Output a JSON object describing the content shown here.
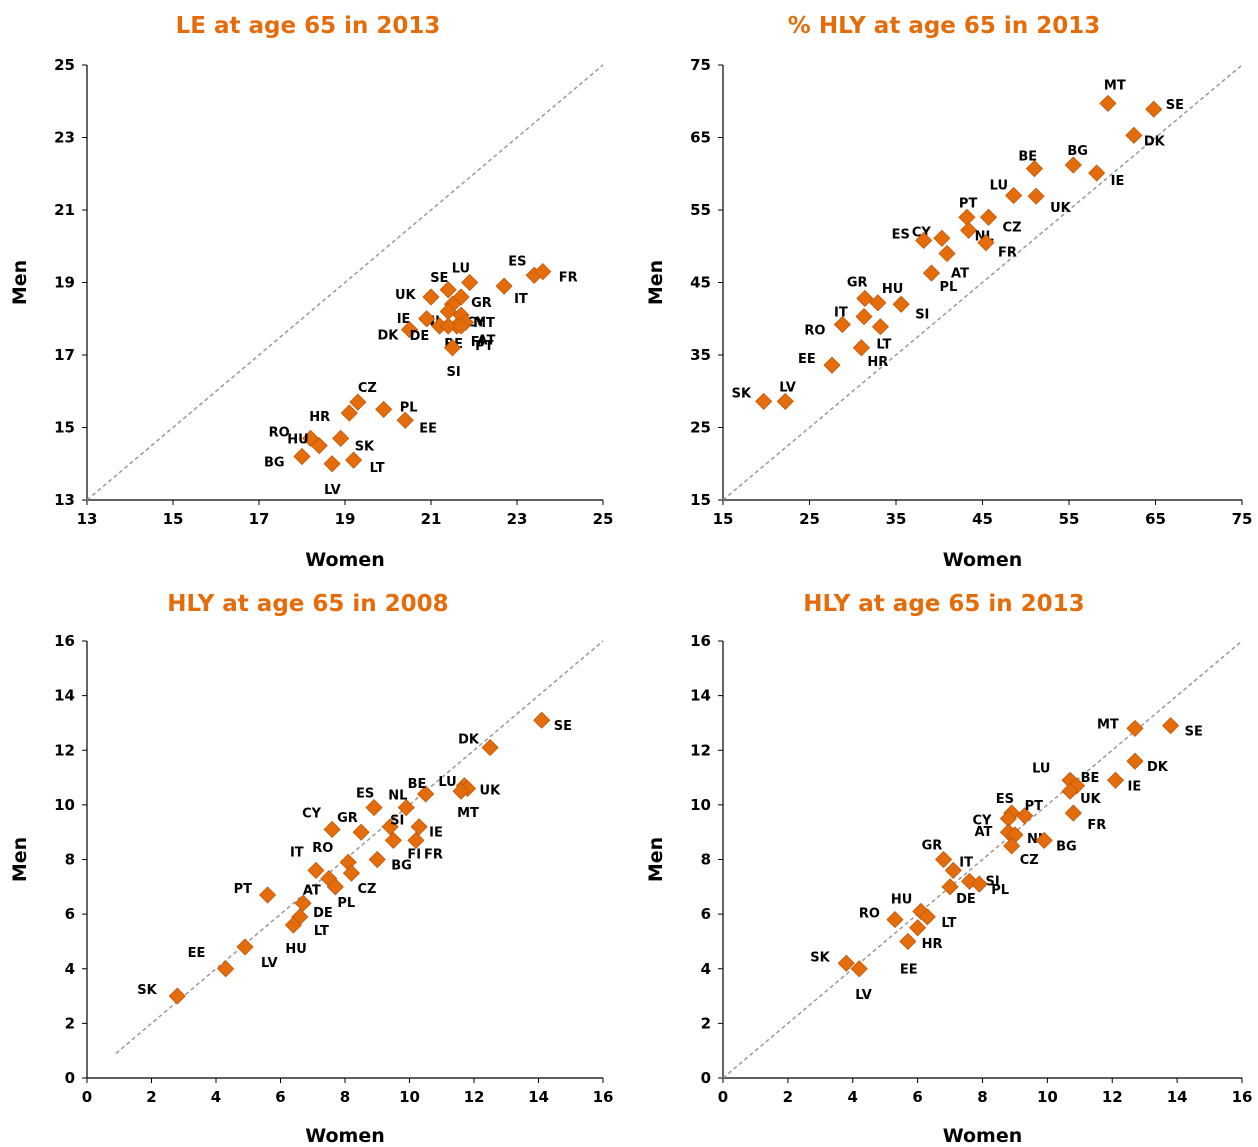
{
  "chart_data": [
    {
      "type": "scatter",
      "title": "LE at age 65 in 2013",
      "xlabel": "Women",
      "ylabel": "Men",
      "xlim": [
        13,
        25
      ],
      "ylim": [
        13,
        25
      ],
      "xticks": [
        "13",
        "15",
        "17",
        "19",
        "21",
        "23",
        "25"
      ],
      "yticks": [
        "13",
        "15",
        "17",
        "19",
        "21",
        "23",
        "25"
      ],
      "reference_line": "y = x",
      "marker_color": "#E46C0A",
      "points": [
        {
          "label": "ES",
          "x": 23.4,
          "y": 19.2
        },
        {
          "label": "FR",
          "x": 23.6,
          "y": 19.3
        },
        {
          "label": "IT",
          "x": 22.7,
          "y": 18.9
        },
        {
          "label": "LU",
          "x": 21.9,
          "y": 19.0
        },
        {
          "label": "SE",
          "x": 21.4,
          "y": 18.8
        },
        {
          "label": "GR",
          "x": 21.7,
          "y": 18.6
        },
        {
          "label": "CY",
          "x": 21.5,
          "y": 18.4
        },
        {
          "label": "UK",
          "x": 21.0,
          "y": 18.6
        },
        {
          "label": "NL",
          "x": 21.4,
          "y": 18.2
        },
        {
          "label": "MT",
          "x": 21.7,
          "y": 18.1
        },
        {
          "label": "AT",
          "x": 21.8,
          "y": 17.9
        },
        {
          "label": "IE",
          "x": 20.9,
          "y": 18.0
        },
        {
          "label": "FI",
          "x": 21.6,
          "y": 17.8
        },
        {
          "label": "DK",
          "x": 20.5,
          "y": 17.7
        },
        {
          "label": "DE",
          "x": 21.2,
          "y": 17.8
        },
        {
          "label": "BE",
          "x": 21.4,
          "y": 17.8
        },
        {
          "label": "PT",
          "x": 21.7,
          "y": 17.8
        },
        {
          "label": "SI",
          "x": 21.5,
          "y": 17.2
        },
        {
          "label": "CZ",
          "x": 19.3,
          "y": 15.7
        },
        {
          "label": "HR",
          "x": 19.1,
          "y": 15.4
        },
        {
          "label": "PL",
          "x": 19.9,
          "y": 15.5
        },
        {
          "label": "EE",
          "x": 20.4,
          "y": 15.2
        },
        {
          "label": "RO",
          "x": 18.2,
          "y": 14.7
        },
        {
          "label": "HU",
          "x": 18.4,
          "y": 14.5
        },
        {
          "label": "SK",
          "x": 18.9,
          "y": 14.7
        },
        {
          "label": "BG",
          "x": 18.0,
          "y": 14.2
        },
        {
          "label": "LT",
          "x": 19.2,
          "y": 14.1
        },
        {
          "label": "LV",
          "x": 18.7,
          "y": 14.0
        }
      ]
    },
    {
      "type": "scatter",
      "title": "% HLY at age 65 in 2013",
      "xlabel": "Women",
      "ylabel": "Men",
      "xlim": [
        15,
        75
      ],
      "ylim": [
        15,
        75
      ],
      "xticks": [
        "15",
        "25",
        "35",
        "45",
        "55",
        "65",
        "75"
      ],
      "yticks": [
        "15",
        "25",
        "35",
        "45",
        "55",
        "65",
        "75"
      ],
      "reference_line": "y = x",
      "marker_color": "#E46C0A",
      "points": [
        {
          "label": "MT",
          "x": 59.5,
          "y": 69.7
        },
        {
          "label": "SE",
          "x": 64.8,
          "y": 68.9
        },
        {
          "label": "DK",
          "x": 62.5,
          "y": 65.3
        },
        {
          "label": "BE",
          "x": 51.0,
          "y": 60.7
        },
        {
          "label": "BG",
          "x": 55.5,
          "y": 61.2
        },
        {
          "label": "IE",
          "x": 58.2,
          "y": 60.1
        },
        {
          "label": "LU",
          "x": 48.6,
          "y": 57.0
        },
        {
          "label": "UK",
          "x": 51.2,
          "y": 56.9
        },
        {
          "label": "PT",
          "x": 43.2,
          "y": 54.0
        },
        {
          "label": "CZ",
          "x": 45.7,
          "y": 54.0
        },
        {
          "label": "CY",
          "x": 40.3,
          "y": 51.1
        },
        {
          "label": "NL",
          "x": 43.4,
          "y": 52.2
        },
        {
          "label": "ES",
          "x": 38.2,
          "y": 50.8
        },
        {
          "label": "FR",
          "x": 45.4,
          "y": 50.5
        },
        {
          "label": "AT",
          "x": 40.9,
          "y": 49.0
        },
        {
          "label": "PL",
          "x": 39.1,
          "y": 46.3
        },
        {
          "label": "GR",
          "x": 31.4,
          "y": 42.8
        },
        {
          "label": "HU",
          "x": 32.9,
          "y": 42.2
        },
        {
          "label": "SI",
          "x": 35.6,
          "y": 42.0
        },
        {
          "label": "IT",
          "x": 31.3,
          "y": 40.3
        },
        {
          "label": "RO",
          "x": 28.8,
          "y": 39.2
        },
        {
          "label": "LT",
          "x": 33.2,
          "y": 38.9
        },
        {
          "label": "HR",
          "x": 31.0,
          "y": 36.0
        },
        {
          "label": "EE",
          "x": 27.6,
          "y": 33.6
        },
        {
          "label": "SK",
          "x": 19.7,
          "y": 28.6
        },
        {
          "label": "LV",
          "x": 22.2,
          "y": 28.6
        }
      ]
    },
    {
      "type": "scatter",
      "title": "HLY at age 65 in 2008",
      "xlabel": "Women",
      "ylabel": "Men",
      "xlim": [
        0,
        16
      ],
      "ylim": [
        0,
        16
      ],
      "xticks": [
        "0",
        "2",
        "4",
        "6",
        "8",
        "10",
        "12",
        "14",
        "16"
      ],
      "yticks": [
        "0",
        "2",
        "4",
        "6",
        "8",
        "10",
        "12",
        "14",
        "16"
      ],
      "reference_line": "y = x",
      "marker_color": "#E46C0A",
      "points": [
        {
          "label": "SE",
          "x": 14.1,
          "y": 13.1
        },
        {
          "label": "DK",
          "x": 12.5,
          "y": 12.1
        },
        {
          "label": "LU",
          "x": 11.7,
          "y": 10.7
        },
        {
          "label": "UK",
          "x": 11.8,
          "y": 10.6
        },
        {
          "label": "MT",
          "x": 11.6,
          "y": 10.5
        },
        {
          "label": "BE",
          "x": 10.5,
          "y": 10.4
        },
        {
          "label": "ES",
          "x": 8.9,
          "y": 9.9
        },
        {
          "label": "NL",
          "x": 9.9,
          "y": 9.9
        },
        {
          "label": "CY",
          "x": 7.6,
          "y": 9.1
        },
        {
          "label": "GR",
          "x": 8.5,
          "y": 9.0
        },
        {
          "label": "SI",
          "x": 9.4,
          "y": 9.2
        },
        {
          "label": "IE",
          "x": 10.3,
          "y": 9.2
        },
        {
          "label": "FI",
          "x": 9.5,
          "y": 8.7
        },
        {
          "label": "FR",
          "x": 10.2,
          "y": 8.7
        },
        {
          "label": "RO",
          "x": 8.1,
          "y": 7.9
        },
        {
          "label": "BG",
          "x": 9.0,
          "y": 8.0
        },
        {
          "label": "IT",
          "x": 7.1,
          "y": 7.6
        },
        {
          "label": "CZ",
          "x": 8.2,
          "y": 7.5
        },
        {
          "label": "AT",
          "x": 7.5,
          "y": 7.3
        },
        {
          "label": "PL",
          "x": 7.7,
          "y": 7.0
        },
        {
          "label": "PT",
          "x": 5.6,
          "y": 6.7
        },
        {
          "label": "DE",
          "x": 6.7,
          "y": 6.4
        },
        {
          "label": "LT",
          "x": 6.6,
          "y": 5.9
        },
        {
          "label": "HU",
          "x": 6.4,
          "y": 5.6
        },
        {
          "label": "LV",
          "x": 4.9,
          "y": 4.8
        },
        {
          "label": "EE",
          "x": 4.3,
          "y": 4.0
        },
        {
          "label": "SK",
          "x": 2.8,
          "y": 3.0
        }
      ]
    },
    {
      "type": "scatter",
      "title": "HLY at age 65 in 2013",
      "xlabel": "Women",
      "ylabel": "Men",
      "xlim": [
        0,
        16
      ],
      "ylim": [
        0,
        16
      ],
      "xticks": [
        "0",
        "2",
        "4",
        "6",
        "8",
        "10",
        "12",
        "14",
        "16"
      ],
      "yticks": [
        "0",
        "2",
        "4",
        "6",
        "8",
        "10",
        "12",
        "14",
        "16"
      ],
      "reference_line": "y = x",
      "marker_color": "#E46C0A",
      "points": [
        {
          "label": "MT",
          "x": 12.7,
          "y": 12.8
        },
        {
          "label": "SE",
          "x": 13.8,
          "y": 12.9
        },
        {
          "label": "DK",
          "x": 12.7,
          "y": 11.6
        },
        {
          "label": "IE",
          "x": 12.1,
          "y": 10.9
        },
        {
          "label": "LU",
          "x": 10.7,
          "y": 10.9
        },
        {
          "label": "BE",
          "x": 10.9,
          "y": 10.7
        },
        {
          "label": "UK",
          "x": 10.7,
          "y": 10.5
        },
        {
          "label": "ES",
          "x": 8.9,
          "y": 9.7
        },
        {
          "label": "CY",
          "x": 8.8,
          "y": 9.5
        },
        {
          "label": "PT",
          "x": 9.3,
          "y": 9.6
        },
        {
          "label": "AT",
          "x": 8.8,
          "y": 9.0
        },
        {
          "label": "NL",
          "x": 9.0,
          "y": 8.9
        },
        {
          "label": "FR",
          "x": 10.8,
          "y": 9.7
        },
        {
          "label": "BG",
          "x": 9.9,
          "y": 8.7
        },
        {
          "label": "CZ",
          "x": 8.9,
          "y": 8.5
        },
        {
          "label": "GR",
          "x": 6.8,
          "y": 8.0
        },
        {
          "label": "IT",
          "x": 7.1,
          "y": 7.6
        },
        {
          "label": "SI",
          "x": 7.6,
          "y": 7.2
        },
        {
          "label": "PL",
          "x": 7.9,
          "y": 7.1
        },
        {
          "label": "DE",
          "x": 7.0,
          "y": 7.0
        },
        {
          "label": "HU",
          "x": 6.1,
          "y": 6.1
        },
        {
          "label": "LT",
          "x": 6.3,
          "y": 5.9
        },
        {
          "label": "RO",
          "x": 5.3,
          "y": 5.8
        },
        {
          "label": "HR",
          "x": 6.0,
          "y": 5.5
        },
        {
          "label": "EE",
          "x": 5.7,
          "y": 5.0
        },
        {
          "label": "SK",
          "x": 3.8,
          "y": 4.2
        },
        {
          "label": "LV",
          "x": 4.2,
          "y": 4.0
        }
      ]
    }
  ]
}
